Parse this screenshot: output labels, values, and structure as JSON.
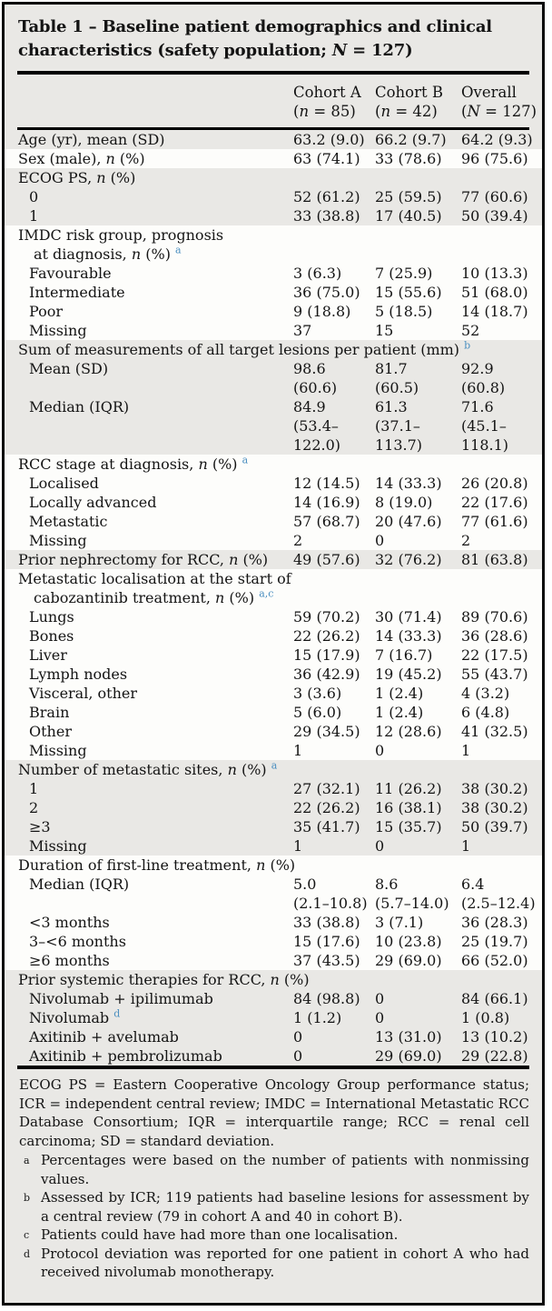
{
  "title": "Table 1 – Baseline patient demographics and clinical characteristics (safety population; N = 127)",
  "columns": [
    {
      "line1": "Cohort A",
      "line2": "(n = 85)"
    },
    {
      "line1": "Cohort B",
      "line2": "(n = 42)"
    },
    {
      "line1": "Overall",
      "line2": "(N = 127)"
    }
  ],
  "rows": [
    {
      "label": "Age (yr), mean (SD)",
      "indent": 0,
      "band": "g",
      "values": [
        "63.2 (9.0)",
        "66.2 (9.7)",
        "64.2 (9.3)"
      ]
    },
    {
      "label": "Sex (male), n (%)",
      "indent": 0,
      "band": "w",
      "values": [
        "63 (74.1)",
        "33 (78.6)",
        "96 (75.6)"
      ]
    },
    {
      "label": "ECOG PS, n (%)",
      "indent": 0,
      "band": "g"
    },
    {
      "label": "0",
      "indent": 1,
      "band": "g",
      "values": [
        "52 (61.2)",
        "25 (59.5)",
        "77 (60.6)"
      ]
    },
    {
      "label": "1",
      "indent": 1,
      "band": "g",
      "values": [
        "33 (38.8)",
        "17 (40.5)",
        "50 (39.4)"
      ]
    },
    {
      "label": "IMDC risk group, prognosis",
      "indent": 0,
      "band": "w"
    },
    {
      "label": "at diagnosis, n (%)",
      "sup": "a",
      "indent": 2,
      "band": "w"
    },
    {
      "label": "Favourable",
      "indent": 1,
      "band": "w",
      "values": [
        "3 (6.3)",
        "7 (25.9)",
        "10 (13.3)"
      ]
    },
    {
      "label": "Intermediate",
      "indent": 1,
      "band": "w",
      "values": [
        "36 (75.0)",
        "15 (55.6)",
        "51 (68.0)"
      ]
    },
    {
      "label": "Poor",
      "indent": 1,
      "band": "w",
      "values": [
        "9 (18.8)",
        "5 (18.5)",
        "14 (18.7)"
      ]
    },
    {
      "label": "Missing",
      "indent": 1,
      "band": "w",
      "values": [
        "37",
        "15",
        "52"
      ]
    },
    {
      "label": "Sum of measurements of all target lesions per patient (mm)",
      "sup": "b",
      "indent": 0,
      "band": "g"
    },
    {
      "label": "Mean (SD)",
      "indent": 1,
      "band": "g",
      "values": [
        "98.6",
        "81.7",
        "92.9"
      ]
    },
    {
      "label": "",
      "indent": 1,
      "band": "g",
      "values": [
        "(60.6)",
        "(60.5)",
        "(60.8)"
      ]
    },
    {
      "label": "Median (IQR)",
      "indent": 1,
      "band": "g",
      "values": [
        "84.9",
        "61.3",
        "71.6"
      ]
    },
    {
      "label": "",
      "indent": 1,
      "band": "g",
      "values": [
        "(53.4–",
        "(37.1–",
        "(45.1–"
      ]
    },
    {
      "label": "",
      "indent": 1,
      "band": "g",
      "values": [
        "122.0)",
        "113.7)",
        "118.1)"
      ]
    },
    {
      "label": "RCC stage at diagnosis, n (%)",
      "sup": "a",
      "indent": 0,
      "band": "w"
    },
    {
      "label": "Localised",
      "indent": 1,
      "band": "w",
      "values": [
        "12 (14.5)",
        "14 (33.3)",
        "26 (20.8)"
      ]
    },
    {
      "label": "Locally advanced",
      "indent": 1,
      "band": "w",
      "values": [
        "14 (16.9)",
        "8 (19.0)",
        "22 (17.6)"
      ]
    },
    {
      "label": "Metastatic",
      "indent": 1,
      "band": "w",
      "values": [
        "57 (68.7)",
        "20 (47.6)",
        "77 (61.6)"
      ]
    },
    {
      "label": "Missing",
      "indent": 1,
      "band": "w",
      "values": [
        "2",
        "0",
        "2"
      ]
    },
    {
      "label": "Prior nephrectomy for RCC, n (%)",
      "indent": 0,
      "band": "g",
      "values": [
        "49 (57.6)",
        "32 (76.2)",
        "81 (63.8)"
      ]
    },
    {
      "label": "Metastatic localisation at the start of",
      "indent": 0,
      "band": "w"
    },
    {
      "label": "cabozantinib treatment, n (%)",
      "sup": "a,c",
      "indent": 2,
      "band": "w"
    },
    {
      "label": "Lungs",
      "indent": 1,
      "band": "w",
      "values": [
        "59 (70.2)",
        "30 (71.4)",
        "89 (70.6)"
      ]
    },
    {
      "label": "Bones",
      "indent": 1,
      "band": "w",
      "values": [
        "22 (26.2)",
        "14 (33.3)",
        "36 (28.6)"
      ]
    },
    {
      "label": "Liver",
      "indent": 1,
      "band": "w",
      "values": [
        "15 (17.9)",
        "7 (16.7)",
        "22 (17.5)"
      ]
    },
    {
      "label": "Lymph nodes",
      "indent": 1,
      "band": "w",
      "values": [
        "36 (42.9)",
        "19 (45.2)",
        "55 (43.7)"
      ]
    },
    {
      "label": "Visceral, other",
      "indent": 1,
      "band": "w",
      "values": [
        "3 (3.6)",
        "1 (2.4)",
        "4 (3.2)"
      ]
    },
    {
      "label": "Brain",
      "indent": 1,
      "band": "w",
      "values": [
        "5 (6.0)",
        "1 (2.4)",
        "6 (4.8)"
      ]
    },
    {
      "label": "Other",
      "indent": 1,
      "band": "w",
      "values": [
        "29 (34.5)",
        "12 (28.6)",
        "41 (32.5)"
      ]
    },
    {
      "label": "Missing",
      "indent": 1,
      "band": "w",
      "values": [
        "1",
        "0",
        "1"
      ]
    },
    {
      "label": "Number of metastatic sites, n (%)",
      "sup": "a",
      "indent": 0,
      "band": "g"
    },
    {
      "label": "1",
      "indent": 1,
      "band": "g",
      "values": [
        "27 (32.1)",
        "11 (26.2)",
        "38 (30.2)"
      ]
    },
    {
      "label": "2",
      "indent": 1,
      "band": "g",
      "values": [
        "22 (26.2)",
        "16 (38.1)",
        "38 (30.2)"
      ]
    },
    {
      "label": "≥3",
      "indent": 1,
      "band": "g",
      "values": [
        "35 (41.7)",
        "15 (35.7)",
        "50 (39.7)"
      ]
    },
    {
      "label": "Missing",
      "indent": 1,
      "band": "g",
      "values": [
        "1",
        "0",
        "1"
      ]
    },
    {
      "label": "Duration of first-line treatment, n (%)",
      "indent": 0,
      "band": "w"
    },
    {
      "label": "Median (IQR)",
      "indent": 1,
      "band": "w",
      "values": [
        "5.0",
        "8.6",
        "6.4"
      ]
    },
    {
      "label": "",
      "indent": 1,
      "band": "w",
      "values": [
        "(2.1–10.8)",
        "(5.7–14.0)",
        "(2.5–12.4)"
      ]
    },
    {
      "label": "<3 months",
      "indent": 1,
      "band": "w",
      "values": [
        "33 (38.8)",
        "3 (7.1)",
        "36 (28.3)"
      ]
    },
    {
      "label": "3–<6 months",
      "indent": 1,
      "band": "w",
      "values": [
        "15 (17.6)",
        "10 (23.8)",
        "25 (19.7)"
      ]
    },
    {
      "label": "≥6 months",
      "indent": 1,
      "band": "w",
      "values": [
        "37 (43.5)",
        "29 (69.0)",
        "66 (52.0)"
      ]
    },
    {
      "label": "Prior systemic therapies for RCC, n (%)",
      "indent": 0,
      "band": "g"
    },
    {
      "label": "Nivolumab + ipilimumab",
      "indent": 1,
      "band": "g",
      "values": [
        "84 (98.8)",
        "0",
        "84 (66.1)"
      ]
    },
    {
      "label": "Nivolumab",
      "sup": "d",
      "indent": 1,
      "band": "g",
      "values": [
        "1 (1.2)",
        "0",
        "1 (0.8)"
      ]
    },
    {
      "label": "Axitinib + avelumab",
      "indent": 1,
      "band": "g",
      "values": [
        "0",
        "13 (31.0)",
        "13 (10.2)"
      ]
    },
    {
      "label": "Axitinib + pembrolizumab",
      "indent": 1,
      "band": "g",
      "values": [
        "0",
        "29 (69.0)",
        "29 (22.8)"
      ]
    }
  ],
  "footnotes": {
    "abbreviations": "ECOG PS = Eastern Cooperative Oncology Group performance status; ICR = independent central review; IMDC = International Metastatic RCC Database Consortium; IQR = interquartile range; RCC = renal cell carcinoma; SD = standard deviation.",
    "items": [
      {
        "marker": "a",
        "text": "Percentages were based on the number of patients with nonmissing values."
      },
      {
        "marker": "b",
        "text": "Assessed by ICR; 119 patients had baseline lesions for assessment by a central review (79 in cohort A and 40 in cohort B)."
      },
      {
        "marker": "c",
        "text": "Patients could have had more than one localisation."
      },
      {
        "marker": "d",
        "text": "Protocol deviation was reported for one patient in cohort A who had received nivolumab monotherapy."
      }
    ]
  },
  "colors": {
    "table_background": "#e9e8e5",
    "white_band": "#fdfdfb",
    "rule": "#000000",
    "superscript_blue": "#4b8fc0",
    "text": "#141414"
  }
}
